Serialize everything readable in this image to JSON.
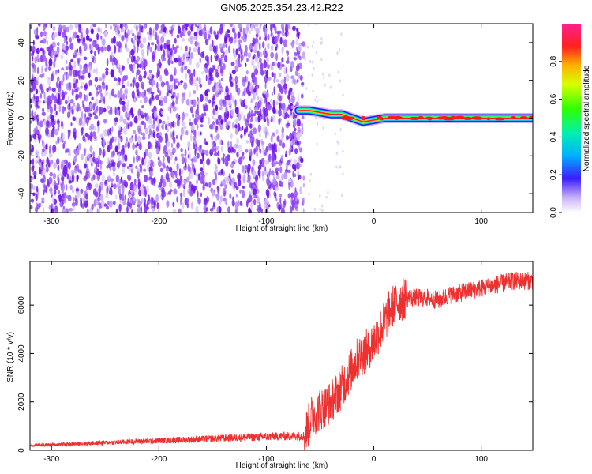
{
  "title": "GN05.2025.354.23.42.R22",
  "colors": {
    "snr_line": "#ee3030",
    "scatter": "#7a1ff0",
    "scatter_light": "#c9a8f5"
  },
  "chart_data": [
    {
      "type": "heatmap",
      "xlabel": "Height of straight line (km)",
      "ylabel": "Frequency (Hz)",
      "xlim": [
        -320,
        148
      ],
      "ylim": [
        -50,
        50
      ],
      "x_ticks": [
        -300,
        -200,
        -100,
        0,
        100
      ],
      "y_ticks": [
        -40,
        -20,
        0,
        20,
        40
      ],
      "noise_region_x": [
        -320,
        -65
      ],
      "signal_band": {
        "x": [
          -70,
          -60,
          -50,
          -40,
          -30,
          -20,
          -10,
          0,
          10,
          20,
          40,
          60,
          80,
          100,
          120,
          148
        ],
        "freq": [
          4,
          4,
          3,
          2,
          2,
          0,
          -2,
          -1,
          0,
          0,
          0,
          0,
          0,
          0,
          0,
          0
        ]
      },
      "colorbar": {
        "label": "Normalized spectral amplitude",
        "range": [
          0.0,
          1.0
        ],
        "ticks": [
          0.0,
          0.2,
          0.4,
          0.6,
          0.8
        ]
      }
    },
    {
      "type": "line",
      "xlabel": "Height of straight line (km)",
      "ylabel": "SNR (10 * v/v)",
      "xlim": [
        -320,
        148
      ],
      "ylim": [
        0,
        7800
      ],
      "x_ticks": [
        -300,
        -200,
        -100,
        0,
        100
      ],
      "y_ticks": [
        0,
        2000,
        4000,
        6000
      ],
      "series": [
        {
          "x": [
            -320,
            -300,
            -280,
            -260,
            -240,
            -220,
            -200,
            -180,
            -160,
            -140,
            -120,
            -100,
            -80,
            -65,
            -62,
            -58,
            -55,
            -50,
            -45,
            -40,
            -35,
            -30,
            -25,
            -20,
            -15,
            -10,
            -5,
            0,
            5,
            10,
            15,
            20,
            25,
            30,
            40,
            50,
            60,
            70,
            80,
            90,
            100,
            110,
            120,
            130,
            140,
            148
          ],
          "y": [
            200,
            230,
            260,
            300,
            330,
            370,
            400,
            430,
            460,
            500,
            530,
            560,
            580,
            600,
            900,
            1400,
            1500,
            1700,
            1800,
            2000,
            2300,
            2600,
            3000,
            3400,
            3800,
            4000,
            4200,
            4500,
            4900,
            5300,
            5800,
            6100,
            6200,
            6300,
            6300,
            6300,
            6200,
            6400,
            6500,
            6600,
            6700,
            6800,
            6900,
            7000,
            7000,
            7000
          ]
        }
      ]
    }
  ]
}
